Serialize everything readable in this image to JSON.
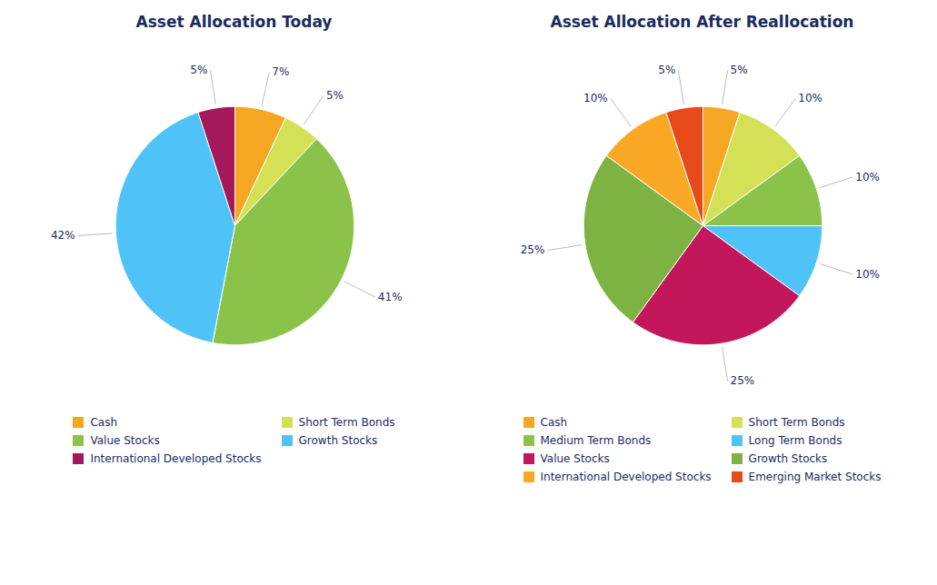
{
  "chart_data": [
    {
      "type": "pie",
      "title": "Asset Allocation Today",
      "categories": [
        "Cash",
        "Short Term Bonds",
        "Value Stocks",
        "Growth Stocks",
        "International Developed Stocks"
      ],
      "values": [
        7,
        5,
        41,
        42,
        5
      ],
      "value_labels": [
        "7%",
        "5%",
        "41%",
        "42%",
        "5%"
      ],
      "colors": [
        "#F5A623",
        "#D4E157",
        "#8BC34A",
        "#4FC3F7",
        "#A3195B"
      ],
      "data_labels": true,
      "legend": "bottom"
    },
    {
      "type": "pie",
      "title": "Asset Allocation After Reallocation",
      "categories": [
        "Cash",
        "Short Term Bonds",
        "Medium Term Bonds",
        "Long Term Bonds",
        "Value Stocks",
        "Growth Stocks",
        "International Developed Stocks",
        "Emerging Market Stocks"
      ],
      "values": [
        5,
        10,
        10,
        10,
        25,
        25,
        10,
        5
      ],
      "value_labels": [
        "5%",
        "10%",
        "10%",
        "10%",
        "25%",
        "25%",
        "10%",
        "5%"
      ],
      "colors": [
        "#F5A623",
        "#D4E157",
        "#8BC34A",
        "#4FC3F7",
        "#C2185B",
        "#7CB342",
        "#F9A825",
        "#E64A19"
      ],
      "data_labels": true,
      "legend": "bottom"
    }
  ]
}
